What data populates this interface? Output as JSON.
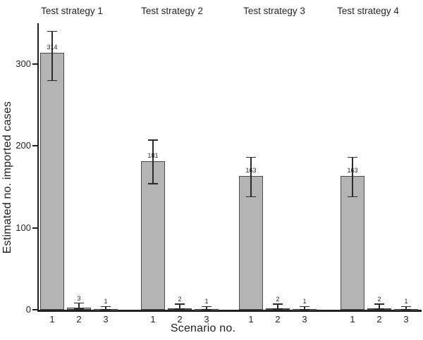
{
  "figure": {
    "background": "#ffffff"
  },
  "chart_data": {
    "type": "bar",
    "title": "",
    "xlabel": "Scenario no.",
    "ylabel": "Estimated no. imported cases",
    "ylim": [
      0,
      350
    ],
    "yticks": [
      0,
      100,
      200,
      300
    ],
    "categories": [
      "1",
      "2",
      "3"
    ],
    "error_bars": true,
    "grid": false,
    "legend": null,
    "panels": [
      {
        "label": "Test strategy 1",
        "values": [
          314,
          3,
          1
        ],
        "value_labels": [
          "314",
          "3",
          "1"
        ],
        "error_low": [
          280,
          1,
          0
        ],
        "error_high": [
          340,
          8,
          4
        ]
      },
      {
        "label": "Test strategy 2",
        "values": [
          181,
          2,
          1
        ],
        "value_labels": [
          "181",
          "2",
          "1"
        ],
        "error_low": [
          154,
          1,
          0
        ],
        "error_high": [
          207,
          7,
          4
        ]
      },
      {
        "label": "Test strategy 3",
        "values": [
          163,
          2,
          1
        ],
        "value_labels": [
          "163",
          "2",
          "1"
        ],
        "error_low": [
          138,
          1,
          0
        ],
        "error_high": [
          186,
          7,
          4
        ]
      },
      {
        "label": "Test strategy 4",
        "values": [
          163,
          2,
          1
        ],
        "value_labels": [
          "163",
          "2",
          "1"
        ],
        "error_low": [
          138,
          1,
          0
        ],
        "error_high": [
          186,
          7,
          4
        ]
      }
    ],
    "colors": {
      "bar_fill": "#b4b4b4",
      "bar_border": "#4a4a4a",
      "axis": "#1f1f1f",
      "text": "#1f1f1f"
    }
  }
}
